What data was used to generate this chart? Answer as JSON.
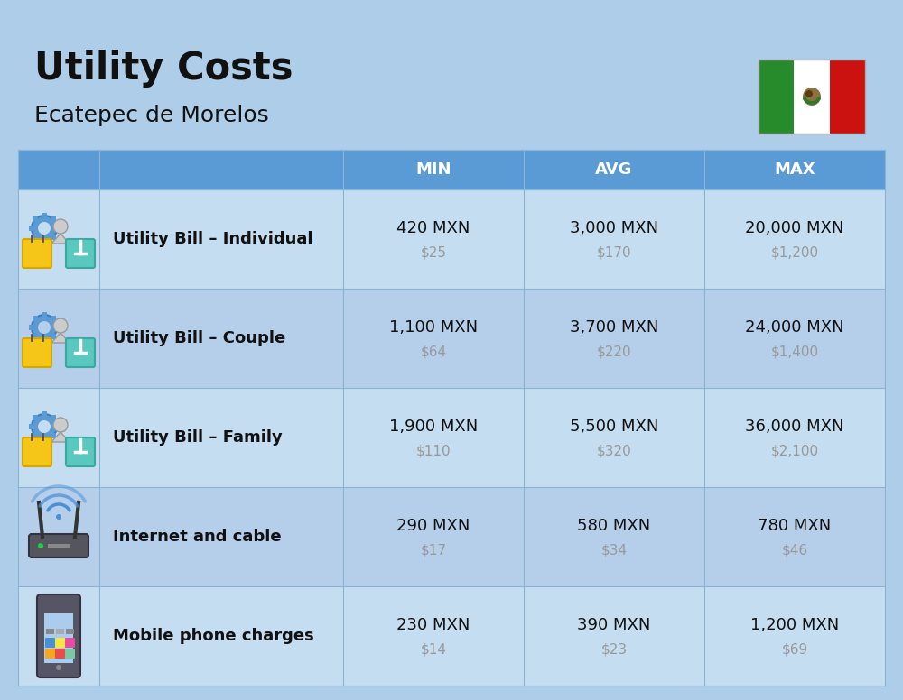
{
  "title": "Utility Costs",
  "subtitle": "Ecatepec de Morelos",
  "bg_color": "#aecde8",
  "header_bg": "#5b9bd5",
  "header_text_color": "#ffffff",
  "row_bg_even": "#c5ddf0",
  "row_bg_odd": "#b5ceea",
  "divider_color": "#8ab4d4",
  "col_headers": [
    "MIN",
    "AVG",
    "MAX"
  ],
  "rows": [
    {
      "label": "Utility Bill – Individual",
      "icon": "utility",
      "min_mxn": "420 MXN",
      "min_usd": "$25",
      "avg_mxn": "3,000 MXN",
      "avg_usd": "$170",
      "max_mxn": "20,000 MXN",
      "max_usd": "$1,200"
    },
    {
      "label": "Utility Bill – Couple",
      "icon": "utility",
      "min_mxn": "1,100 MXN",
      "min_usd": "$64",
      "avg_mxn": "3,700 MXN",
      "avg_usd": "$220",
      "max_mxn": "24,000 MXN",
      "max_usd": "$1,400"
    },
    {
      "label": "Utility Bill – Family",
      "icon": "utility",
      "min_mxn": "1,900 MXN",
      "min_usd": "$110",
      "avg_mxn": "5,500 MXN",
      "avg_usd": "$320",
      "max_mxn": "36,000 MXN",
      "max_usd": "$2,100"
    },
    {
      "label": "Internet and cable",
      "icon": "internet",
      "min_mxn": "290 MXN",
      "min_usd": "$17",
      "avg_mxn": "580 MXN",
      "avg_usd": "$34",
      "max_mxn": "780 MXN",
      "max_usd": "$46"
    },
    {
      "label": "Mobile phone charges",
      "icon": "mobile",
      "min_mxn": "230 MXN",
      "min_usd": "$14",
      "avg_mxn": "390 MXN",
      "avg_usd": "$23",
      "max_mxn": "1,200 MXN",
      "max_usd": "$69"
    }
  ],
  "title_fontsize": 30,
  "subtitle_fontsize": 18,
  "header_fontsize": 13,
  "label_fontsize": 13,
  "value_fontsize": 13,
  "usd_fontsize": 11,
  "usd_color": "#999999",
  "label_color": "#111111",
  "value_color": "#111111"
}
